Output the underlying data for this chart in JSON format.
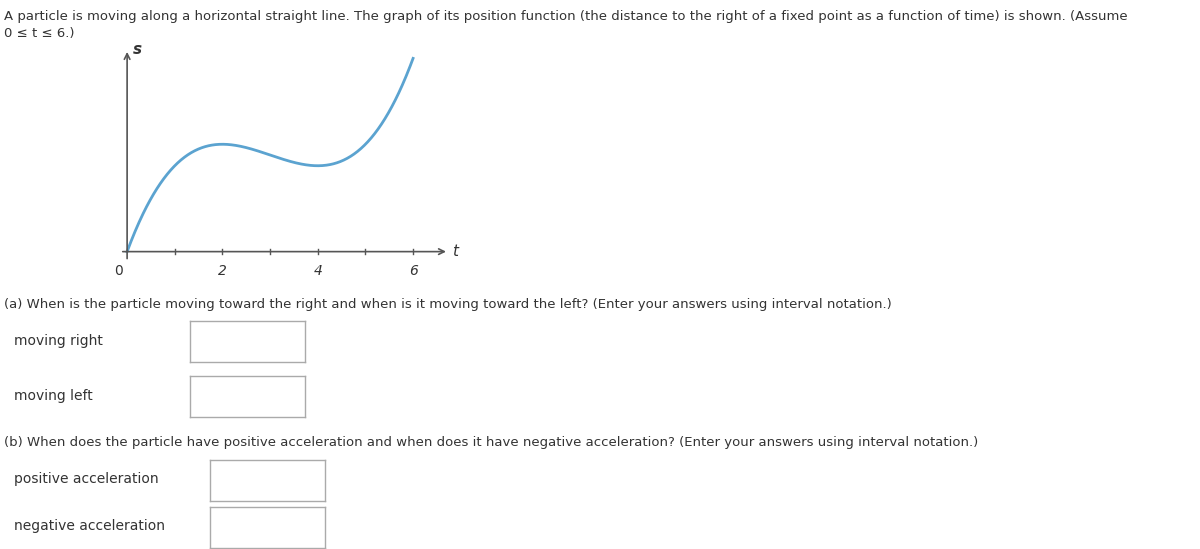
{
  "title_line1": "A particle is moving along a horizontal straight line. The graph of its position function (the distance to the right of a fixed point as a function of time) is shown. (Assume",
  "title_line2": "0 ≤ t ≤ 6.)",
  "curve_color": "#5ba3d0",
  "axis_color": "#555555",
  "background_color": "#ffffff",
  "text_color": "#333333",
  "xlabel": "t",
  "ylabel": "s",
  "xlim": [
    -0.25,
    6.8
  ],
  "ylim": [
    -0.3,
    4.2
  ],
  "question_a": "(a) When is the particle moving toward the right and when is it moving toward the left? (Enter your answers using interval notation.)",
  "label_moving_right": "moving right",
  "label_moving_left": "moving left",
  "question_b": "(b) When does the particle have positive acceleration and when does it have negative acceleration? (Enter your answers using interval notation.)",
  "label_pos_acc": "positive acceleration",
  "label_neg_acc": "negative acceleration",
  "box_color": "#aaaaaa",
  "font_size_text": 9.5,
  "font_size_labels": 10,
  "font_size_axis": 11
}
